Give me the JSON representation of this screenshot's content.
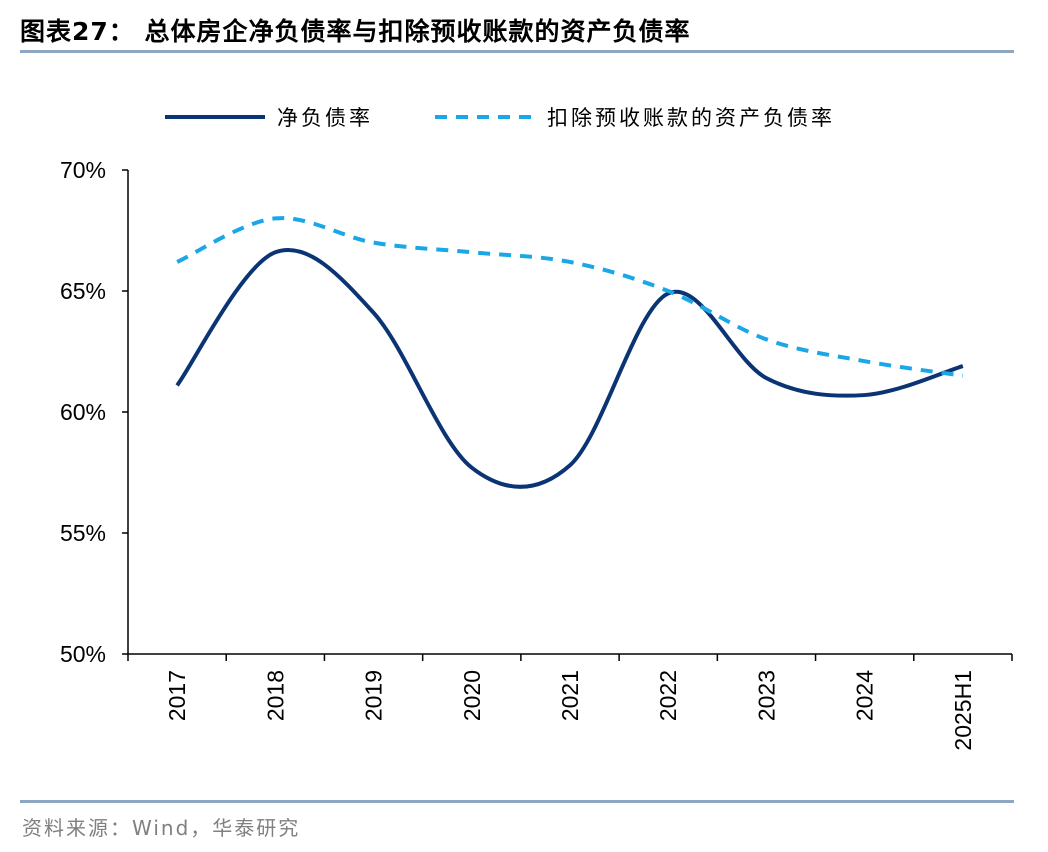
{
  "title": "图表27： 总体房企净负债率与扣除预收账款的资产负债率",
  "source": "资料来源：Wind，华泰研究",
  "chart_data": {
    "type": "line",
    "categories": [
      "2017",
      "2018",
      "2019",
      "2020",
      "2021",
      "2022",
      "2023",
      "2024",
      "2025H1"
    ],
    "ylim": [
      50,
      70
    ],
    "yticks": [
      "50%",
      "55%",
      "60%",
      "65%",
      "70%"
    ],
    "ytick_values": [
      50,
      55,
      60,
      65,
      70
    ],
    "grid": false,
    "legend_position": "top",
    "series": [
      {
        "name": "净负债率",
        "values": [
          61.1,
          66.6,
          64.1,
          57.7,
          57.8,
          64.9,
          61.4,
          60.7,
          61.9
        ],
        "color": "#0b3474",
        "style": "solid"
      },
      {
        "name": "扣除预收账款的资产负债率",
        "values": [
          66.2,
          68.0,
          67.0,
          66.6,
          66.2,
          65.0,
          63.0,
          62.1,
          61.5
        ],
        "color": "#1aa7e8",
        "style": "dashed"
      }
    ]
  }
}
